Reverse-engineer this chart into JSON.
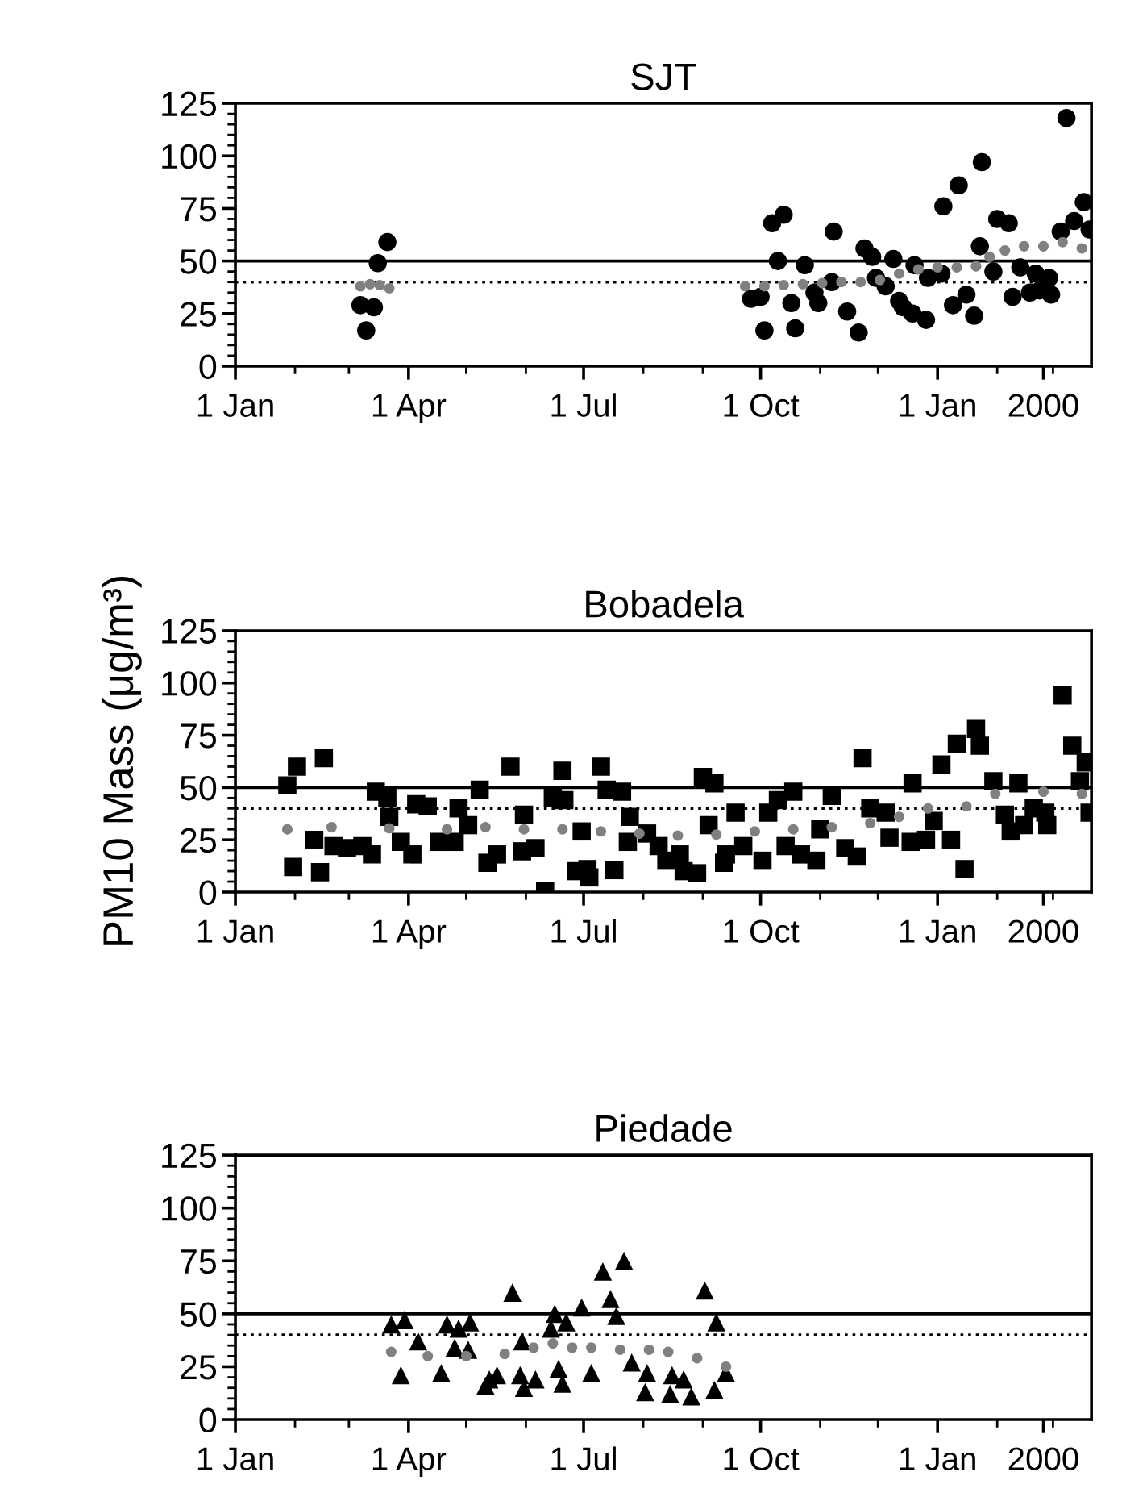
{
  "chart_data": [
    {
      "type": "scatter",
      "title": "SJT",
      "xlim": [
        "1999-01-01",
        "2000-03-21"
      ],
      "ylim": [
        0,
        125
      ],
      "yticks": [
        0,
        25,
        50,
        75,
        100,
        125
      ],
      "xticks": [
        {
          "value": "1999-01-01",
          "label": "1 Jan"
        },
        {
          "value": "1999-04-01",
          "label": "1 Apr"
        },
        {
          "value": "1999-07-01",
          "label": "1 Jul"
        },
        {
          "value": "1999-10-01",
          "label": "1 Oct"
        },
        {
          "value": "2000-01-01",
          "label": "1 Jan"
        },
        {
          "value": "2000-02-25",
          "label": "2000"
        }
      ],
      "grid": false,
      "ref_lines": [
        {
          "axis": "y",
          "value": 50,
          "color": "#000000",
          "line_style": "solid"
        },
        {
          "axis": "y",
          "value": 40,
          "color": "#000000",
          "line_style": "dotted"
        }
      ],
      "series": [
        {
          "marker": "circle",
          "color": "#000000",
          "x": [
            "1999-03-07",
            "1999-03-10",
            "1999-03-14",
            "1999-03-16",
            "1999-03-21",
            "1999-09-26",
            "1999-10-01",
            "1999-10-03",
            "1999-10-07",
            "1999-10-10",
            "1999-10-13",
            "1999-10-17",
            "1999-10-19",
            "1999-10-24",
            "1999-10-29",
            "1999-10-31",
            "1999-11-07",
            "1999-11-08",
            "1999-11-15",
            "1999-11-21",
            "1999-11-24",
            "1999-11-28",
            "1999-11-30",
            "1999-12-05",
            "1999-12-09",
            "1999-12-12",
            "1999-12-14",
            "1999-12-19",
            "1999-12-20",
            "1999-12-26",
            "1999-12-27",
            "2000-01-03",
            "2000-01-04",
            "2000-01-09",
            "2000-01-12",
            "2000-01-16",
            "2000-01-20",
            "2000-01-23",
            "2000-01-24",
            "2000-01-30",
            "2000-02-01",
            "2000-02-07",
            "2000-02-09",
            "2000-02-13",
            "2000-02-18",
            "2000-02-21",
            "2000-02-23",
            "2000-02-28",
            "2000-02-29",
            "2000-03-05",
            "2000-03-08",
            "2000-03-12",
            "2000-03-17",
            "2000-03-20"
          ],
          "values": [
            29,
            17,
            28,
            49,
            59,
            32,
            33,
            17,
            68,
            50,
            72,
            30,
            18,
            48,
            35,
            30,
            40,
            64,
            26,
            16,
            56,
            52,
            42,
            38,
            51,
            31,
            28,
            25,
            48,
            22,
            42,
            44,
            76,
            29,
            86,
            34,
            24,
            57,
            97,
            45,
            70,
            68,
            33,
            47,
            35,
            44,
            36,
            42,
            34,
            64,
            118,
            69,
            78,
            65
          ]
        },
        {
          "marker": "circle",
          "color": "#808080",
          "x": [
            "1999-03-07",
            "1999-03-12",
            "1999-03-17",
            "1999-03-22",
            "1999-09-23",
            "1999-10-03",
            "1999-10-13",
            "1999-10-23",
            "1999-11-02",
            "1999-11-12",
            "1999-11-22",
            "1999-12-02",
            "1999-12-12",
            "1999-12-22",
            "2000-01-01",
            "2000-01-11",
            "2000-01-21",
            "2000-01-28",
            "2000-02-05",
            "2000-02-15",
            "2000-02-25",
            "2000-03-06",
            "2000-03-16"
          ],
          "values": [
            38,
            39,
            38.5,
            37,
            38,
            38,
            38.5,
            39,
            39.5,
            40,
            40,
            41,
            44,
            46,
            47,
            47,
            47.5,
            52,
            55,
            57,
            57,
            59,
            56
          ]
        }
      ]
    },
    {
      "type": "scatter",
      "title": "Bobadela",
      "ylabel": "PM10 Mass (μg/m³)",
      "xlim": [
        "1999-01-01",
        "2000-03-21"
      ],
      "ylim": [
        0,
        125
      ],
      "yticks": [
        0,
        25,
        50,
        75,
        100,
        125
      ],
      "xticks": [
        {
          "value": "1999-01-01",
          "label": "1 Jan"
        },
        {
          "value": "1999-04-01",
          "label": "1 Apr"
        },
        {
          "value": "1999-07-01",
          "label": "1 Jul"
        },
        {
          "value": "1999-10-01",
          "label": "1 Oct"
        },
        {
          "value": "2000-01-01",
          "label": "1 Jan"
        },
        {
          "value": "2000-02-25",
          "label": "2000"
        }
      ],
      "grid": false,
      "ref_lines": [
        {
          "axis": "y",
          "value": 50,
          "color": "#000000",
          "line_style": "solid"
        },
        {
          "axis": "y",
          "value": 40,
          "color": "#000000",
          "line_style": "dotted"
        }
      ],
      "series": [
        {
          "marker": "square",
          "color": "#000000",
          "x": [
            "1999-01-28",
            "1999-02-02",
            "1999-01-31",
            "1999-02-14",
            "1999-02-16",
            "1999-02-11",
            "1999-02-21",
            "1999-02-28",
            "1999-03-08",
            "1999-03-13",
            "1999-03-15",
            "1999-03-21",
            "1999-03-22",
            "1999-03-28",
            "1999-04-03",
            "1999-04-05",
            "1999-04-11",
            "1999-04-17",
            "1999-04-25",
            "1999-04-27",
            "1999-05-02",
            "1999-05-08",
            "1999-05-12",
            "1999-05-17",
            "1999-05-24",
            "1999-05-30",
            "1999-05-31",
            "1999-06-06",
            "1999-06-11",
            "1999-06-15",
            "1999-06-20",
            "1999-06-21",
            "1999-06-27",
            "1999-07-03",
            "1999-07-04",
            "1999-06-30",
            "1999-07-10",
            "1999-07-13",
            "1999-07-17",
            "1999-07-21",
            "1999-07-25",
            "1999-07-24",
            "1999-08-03",
            "1999-08-09",
            "1999-08-13",
            "1999-08-20",
            "1999-08-22",
            "1999-08-29",
            "1999-09-01",
            "1999-09-04",
            "1999-09-07",
            "1999-09-12",
            "1999-09-13",
            "1999-09-18",
            "1999-09-22",
            "1999-10-02",
            "1999-10-05",
            "1999-10-10",
            "1999-10-14",
            "1999-10-18",
            "1999-10-22",
            "1999-10-30",
            "1999-11-01",
            "1999-11-07",
            "1999-11-14",
            "1999-11-20",
            "1999-11-23",
            "1999-11-27",
            "1999-12-05",
            "1999-12-07",
            "1999-12-18",
            "1999-12-19",
            "1999-12-26",
            "1999-12-30",
            "2000-01-03",
            "2000-01-08",
            "2000-01-11",
            "2000-01-15",
            "2000-01-21",
            "2000-01-23",
            "2000-01-30",
            "2000-02-05",
            "2000-02-08",
            "2000-02-12",
            "2000-02-15",
            "2000-02-20",
            "2000-02-26",
            "2000-02-27",
            "2000-03-06",
            "2000-03-11",
            "2000-03-15",
            "2000-03-18",
            "2000-03-20"
          ],
          "values": [
            51,
            60,
            12,
            9.5,
            64,
            25,
            22,
            21,
            22,
            18,
            48,
            45,
            36,
            24,
            18,
            42,
            41,
            24,
            24,
            40,
            32,
            49,
            14,
            18,
            60,
            19.5,
            37,
            21,
            0.5,
            45,
            58,
            44,
            10,
            11,
            7,
            29,
            60,
            49,
            10.5,
            48,
            36,
            24,
            28,
            22,
            15,
            18,
            10,
            9,
            55,
            32,
            52,
            14,
            18,
            38,
            22,
            15,
            38,
            44,
            22,
            48,
            18,
            15,
            30,
            46,
            21,
            17,
            64,
            40,
            38,
            26,
            24,
            52,
            25,
            34,
            61,
            25,
            71,
            11,
            78,
            70,
            53,
            37,
            29,
            52,
            32,
            40,
            38,
            32,
            94,
            70,
            53,
            62,
            38
          ]
        },
        {
          "marker": "circle",
          "color": "#808080",
          "x": [
            "1999-01-28",
            "1999-02-20",
            "1999-03-22",
            "1999-04-21",
            "1999-05-11",
            "1999-05-31",
            "1999-06-20",
            "1999-07-10",
            "1999-07-30",
            "1999-08-19",
            "1999-09-08",
            "1999-09-28",
            "1999-10-18",
            "1999-11-07",
            "1999-11-27",
            "1999-12-12",
            "1999-12-27",
            "2000-01-16",
            "2000-01-31",
            "2000-02-25",
            "2000-03-16"
          ],
          "values": [
            30,
            31,
            30.5,
            30,
            31,
            30,
            30,
            29,
            28,
            27,
            27.5,
            29,
            30,
            31,
            33,
            36,
            40,
            41,
            47,
            48,
            47
          ]
        }
      ]
    },
    {
      "type": "scatter",
      "title": "Piedade",
      "xlim": [
        "1999-01-01",
        "2000-03-21"
      ],
      "ylim": [
        0,
        125
      ],
      "yticks": [
        0,
        25,
        50,
        75,
        100,
        125
      ],
      "xticks": [
        {
          "value": "1999-01-01",
          "label": "1 Jan"
        },
        {
          "value": "1999-04-01",
          "label": "1 Apr"
        },
        {
          "value": "1999-07-01",
          "label": "1 Jul"
        },
        {
          "value": "1999-10-01",
          "label": "1 Oct"
        },
        {
          "value": "2000-01-01",
          "label": "1 Jan"
        },
        {
          "value": "2000-02-25",
          "label": "2000"
        }
      ],
      "grid": false,
      "ref_lines": [
        {
          "axis": "y",
          "value": 50,
          "color": "#000000",
          "line_style": "solid"
        },
        {
          "axis": "y",
          "value": 40,
          "color": "#000000",
          "line_style": "dotted"
        }
      ],
      "series": [
        {
          "marker": "triangle",
          "color": "#000000",
          "x": [
            "1999-03-23",
            "1999-03-30",
            "1999-04-06",
            "1999-03-28",
            "1999-04-18",
            "1999-04-21",
            "1999-04-27",
            "1999-05-03",
            "1999-04-25",
            "1999-05-02",
            "1999-05-13",
            "1999-05-17",
            "1999-05-25",
            "1999-05-30",
            "1999-05-29",
            "1999-06-06",
            "1999-06-16",
            "1999-06-14",
            "1999-06-22",
            "1999-06-18",
            "1999-06-30",
            "1999-07-05",
            "1999-07-11",
            "1999-07-22",
            "1999-07-15",
            "1999-07-18",
            "1999-07-26",
            "1999-08-03",
            "1999-08-16",
            "1999-08-22",
            "1999-09-02",
            "1999-09-08",
            "1999-09-13",
            "1999-08-02",
            "1999-08-15",
            "1999-08-26",
            "1999-09-07",
            "1999-05-11",
            "1999-05-31",
            "1999-06-20"
          ],
          "values": [
            45,
            47,
            37,
            21,
            22,
            45,
            43,
            46,
            34,
            33,
            19,
            21,
            60,
            37,
            21,
            19,
            50,
            43,
            46,
            24,
            53,
            22,
            70,
            75,
            57,
            49,
            27,
            22,
            21,
            19,
            61,
            46,
            22,
            13,
            12,
            11,
            14,
            16,
            15,
            17
          ]
        },
        {
          "marker": "circle",
          "color": "#808080",
          "x": [
            "1999-03-23",
            "1999-04-11",
            "1999-05-01",
            "1999-05-21",
            "1999-06-05",
            "1999-06-15",
            "1999-06-25",
            "1999-07-05",
            "1999-07-20",
            "1999-08-04",
            "1999-08-14",
            "1999-08-29",
            "1999-09-13"
          ],
          "values": [
            32,
            30,
            30,
            31,
            34,
            36,
            34,
            34,
            33,
            33,
            32,
            29,
            25
          ]
        }
      ]
    }
  ]
}
